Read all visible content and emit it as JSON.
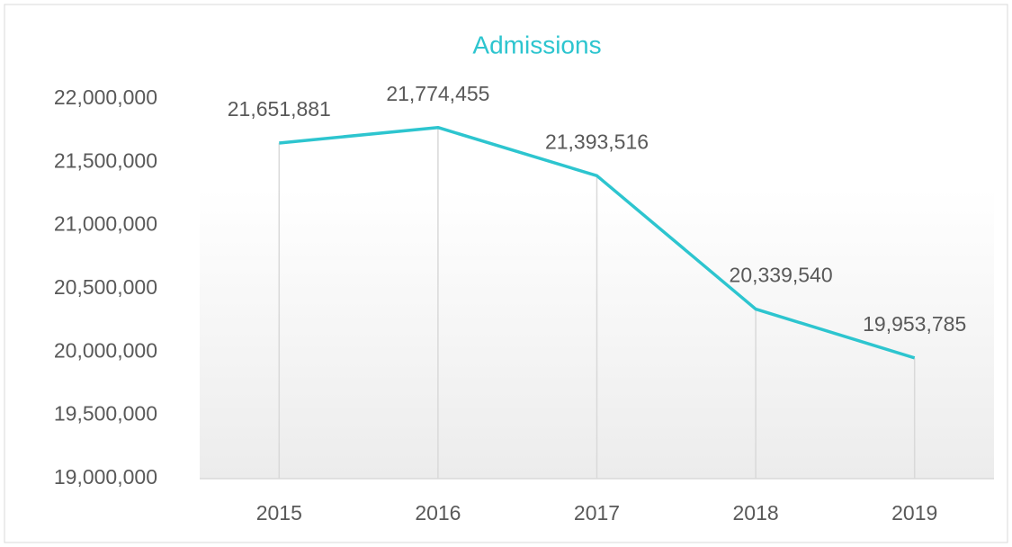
{
  "chart_data": {
    "type": "line",
    "title": "Admissions",
    "categories": [
      "2015",
      "2016",
      "2017",
      "2018",
      "2019"
    ],
    "series": [
      {
        "name": "Admissions",
        "color": "#2dc5cf",
        "values": [
          21651881,
          21774455,
          21393516,
          20339540,
          19953785
        ],
        "value_labels": [
          "21,651,881",
          "21,774,455",
          "21,393,516",
          "20,339,540",
          "19,953,785"
        ]
      }
    ],
    "ylim": [
      19000000,
      22000000
    ],
    "yticks": [
      {
        "value": 19000000,
        "label": "19,000,000"
      },
      {
        "value": 19500000,
        "label": "19,500,000"
      },
      {
        "value": 20000000,
        "label": "20,000,000"
      },
      {
        "value": 20500000,
        "label": "20,500,000"
      },
      {
        "value": 21000000,
        "label": "21,000,000"
      },
      {
        "value": 21500000,
        "label": "21,500,000"
      },
      {
        "value": 22000000,
        "label": "22,000,000"
      }
    ],
    "drop_lines": true
  }
}
